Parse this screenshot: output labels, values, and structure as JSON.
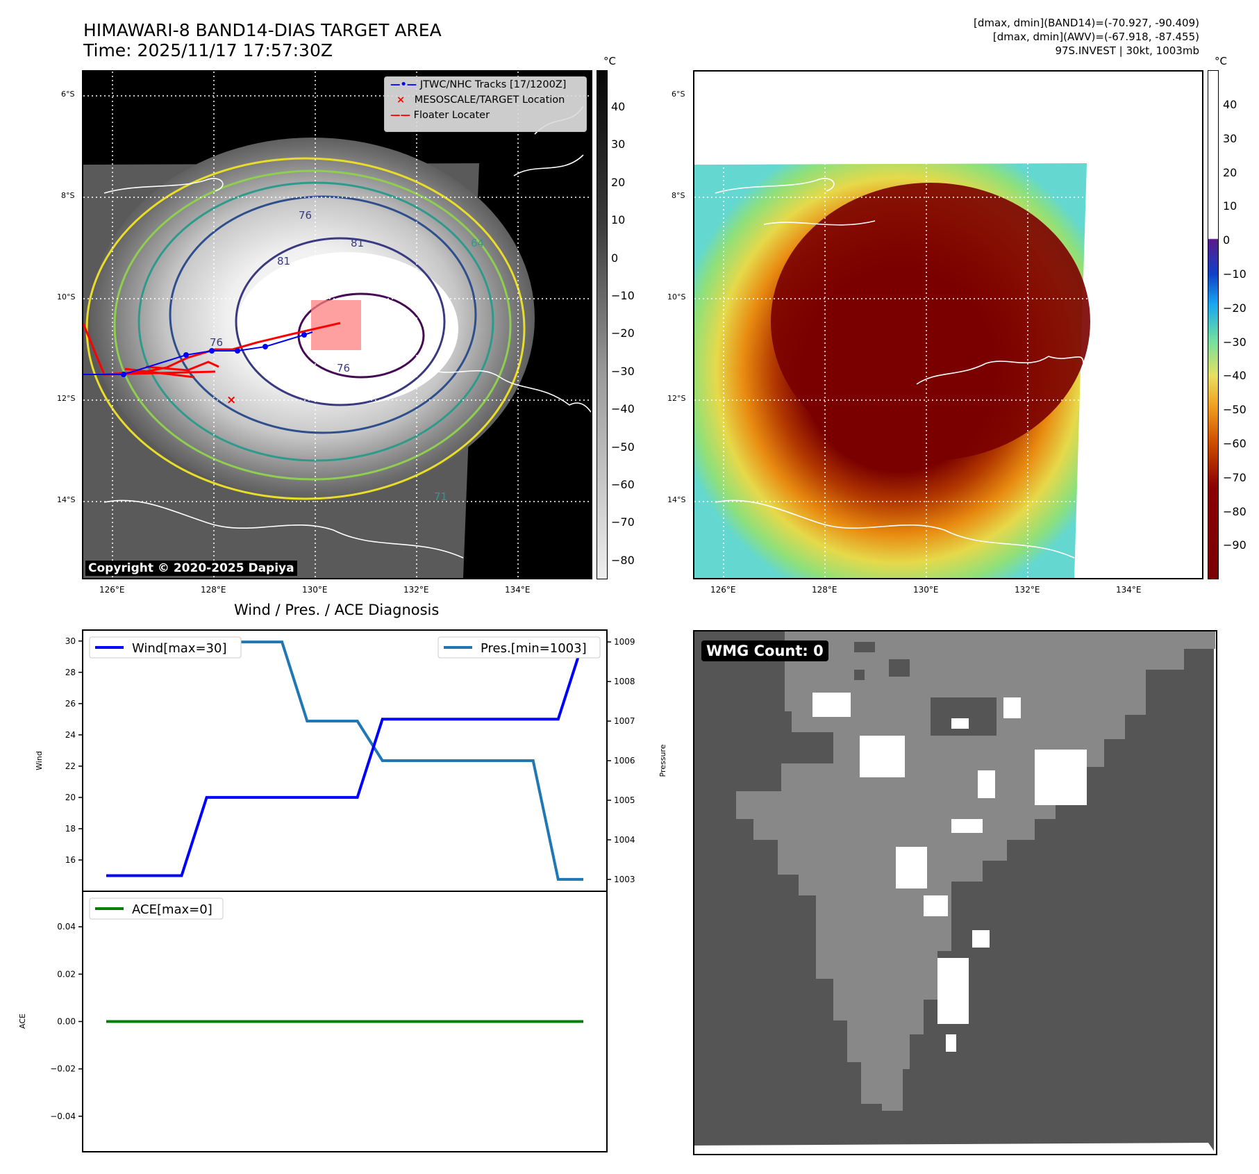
{
  "header": {
    "title_line1": "HIMAWARI-8 BAND14-DIAS TARGET AREA",
    "title_line2": "Time: 2025/11/17 17:57:30Z",
    "info_line1": "[dmax, dmin](BAND14)=(-70.927, -90.409)",
    "info_line2": "[dmax, dmin](AWV)=(-67.918, -87.455)",
    "info_line3": "97S.INVEST | 30kt, 1003mb"
  },
  "maps": {
    "lat_labels": [
      "6°S",
      "8°S",
      "10°S",
      "12°S",
      "14°S"
    ],
    "lon_labels": [
      "126°E",
      "128°E",
      "130°E",
      "132°E",
      "134°E"
    ],
    "unit": "°C",
    "ir_colorbar_ticks": [
      "40",
      "30",
      "20",
      "10",
      "0",
      "−10",
      "−20",
      "−30",
      "−40",
      "−50",
      "−60",
      "−70",
      "−80"
    ],
    "awv_colorbar_ticks": [
      "40",
      "30",
      "20",
      "10",
      "0",
      "−10",
      "−20",
      "−30",
      "−40",
      "−50",
      "−60",
      "−70",
      "−80",
      "−90"
    ],
    "legend": {
      "tracks": "JTWC/NHC Tracks [17/1200Z]",
      "target": "MESOSCALE/TARGET Location",
      "floater": "Floater Locater"
    },
    "copyright": "Copyright © 2020-2025 Dapiya",
    "contour_labels": [
      "76",
      "81",
      "81",
      "64",
      "71",
      "76",
      "76"
    ],
    "track_line_color": "#0000ff",
    "floater_line_color": "#ff0000"
  },
  "diagnosis": {
    "title": "Wind / Pres. / ACE Diagnosis",
    "wind_ylabel": "Wind",
    "pressure_ylabel": "Pressure",
    "ace_ylabel": "ACE",
    "legend_wind": "Wind[max=30]",
    "legend_pres": "Pres.[min=1003]",
    "legend_ace": "ACE[max=0]",
    "wind_ticks": [
      "30",
      "28",
      "26",
      "24",
      "22",
      "20",
      "18",
      "16"
    ],
    "pressure_ticks": [
      "1009",
      "1008",
      "1007",
      "1006",
      "1005",
      "1004",
      "1003"
    ],
    "ace_ticks": [
      "0.04",
      "0.02",
      "0.00",
      "−0.02",
      "−0.04"
    ]
  },
  "wmg": {
    "label": "WMG Count: 0"
  },
  "chart_data": [
    {
      "type": "line",
      "title": "Wind / Pres. / ACE Diagnosis",
      "ylabel": "Wind",
      "x": [
        0,
        1,
        2,
        3,
        4,
        5,
        6,
        7,
        8,
        9,
        10,
        11,
        12,
        13,
        14,
        15,
        16,
        17,
        18,
        19
      ],
      "series": [
        {
          "name": "Wind[max=30]",
          "values": [
            15,
            15,
            15,
            15,
            20,
            20,
            20,
            20,
            20,
            20,
            20,
            25,
            25,
            25,
            25,
            25,
            25,
            25,
            25,
            30
          ],
          "color": "#0000ff"
        }
      ],
      "ylim": [
        14,
        30.7
      ]
    },
    {
      "type": "line",
      "ylabel": "Pressure",
      "x": [
        0,
        1,
        2,
        3,
        4,
        5,
        6,
        7,
        8,
        9,
        10,
        11,
        12,
        13,
        14,
        15,
        16,
        17,
        18,
        19
      ],
      "series": [
        {
          "name": "Pres.[min=1003]",
          "values": [
            1009,
            1009,
            1009,
            1009,
            1009,
            1009,
            1009,
            1009,
            1007,
            1007,
            1007,
            1006,
            1006,
            1006,
            1006,
            1006,
            1006,
            1006,
            1003,
            1003
          ],
          "color": "#1f77b4"
        }
      ],
      "ylim": [
        1002.7,
        1009.3
      ]
    },
    {
      "type": "line",
      "ylabel": "ACE",
      "x": [
        0,
        1,
        2,
        3,
        4,
        5,
        6,
        7,
        8,
        9,
        10,
        11,
        12,
        13,
        14,
        15,
        16,
        17,
        18,
        19
      ],
      "series": [
        {
          "name": "ACE[max=0]",
          "values": [
            0,
            0,
            0,
            0,
            0,
            0,
            0,
            0,
            0,
            0,
            0,
            0,
            0,
            0,
            0,
            0,
            0,
            0,
            0,
            0
          ],
          "color": "#008000"
        }
      ],
      "ylim": [
        -0.055,
        0.055
      ]
    }
  ]
}
